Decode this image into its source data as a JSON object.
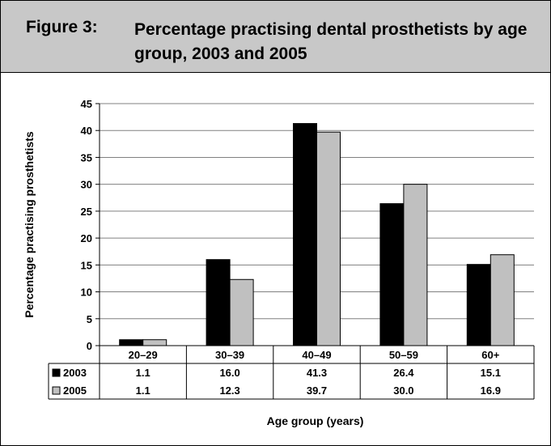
{
  "figure": {
    "number": "Figure 3:",
    "title": "Percentage practising dental prosthetists by age group, 2003 and 2005"
  },
  "chart_data": {
    "type": "bar",
    "categories": [
      "20–29",
      "30–39",
      "40–49",
      "50–59",
      "60+"
    ],
    "series": [
      {
        "name": "2003",
        "values": [
          1.1,
          16.0,
          41.3,
          26.4,
          15.1
        ],
        "labels": [
          "1.1",
          "16.0",
          "41.3",
          "26.4",
          "15.1"
        ],
        "color": "#000000"
      },
      {
        "name": "2005",
        "values": [
          1.1,
          12.3,
          39.7,
          30.0,
          16.9
        ],
        "labels": [
          "1.1",
          "12.3",
          "39.7",
          "30.0",
          "16.9"
        ],
        "color": "#c0c0c0"
      }
    ],
    "ylabel": "Percentage practising prosthetists",
    "xlabel": "Age group (years)",
    "ylim": [
      0,
      45
    ],
    "yticks": [
      0,
      5,
      10,
      15,
      20,
      25,
      30,
      35,
      40,
      45
    ],
    "grid": true,
    "data_table": true
  }
}
